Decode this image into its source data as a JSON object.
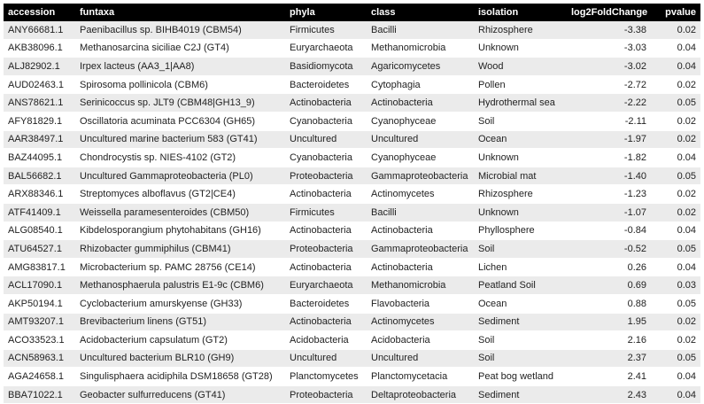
{
  "table": {
    "columns": [
      "accession",
      "funtaxa",
      "phyla",
      "class",
      "isolation",
      "log2FoldChange",
      "pvalue"
    ],
    "rows": [
      [
        "ANY66681.1",
        "Paenibacillus sp. BIHB4019 (CBM54)",
        "Firmicutes",
        "Bacilli",
        "Rhizosphere",
        "-3.38",
        "0.02"
      ],
      [
        "AKB38096.1",
        "Methanosarcina siciliae C2J (GT4)",
        "Euryarchaeota",
        "Methanomicrobia",
        "Unknown",
        "-3.03",
        "0.04"
      ],
      [
        "ALJ82902.1",
        "Irpex lacteus (AA3_1|AA8)",
        "Basidiomycota",
        "Agaricomycetes",
        "Wood",
        "-3.02",
        "0.04"
      ],
      [
        "AUD02463.1",
        "Spirosoma pollinicola (CBM6)",
        "Bacteroidetes",
        "Cytophagia",
        "Pollen",
        "-2.72",
        "0.02"
      ],
      [
        "ANS78621.1",
        "Serinicoccus sp. JLT9 (CBM48|GH13_9)",
        "Actinobacteria",
        "Actinobacteria",
        "Hydrothermal sea",
        "-2.22",
        "0.05"
      ],
      [
        "AFY81829.1",
        "Oscillatoria acuminata PCC6304 (GH65)",
        "Cyanobacteria",
        "Cyanophyceae",
        "Soil",
        "-2.11",
        "0.02"
      ],
      [
        "AAR38497.1",
        "Uncultured marine bacterium 583 (GT41)",
        "Uncultured",
        "Uncultured",
        "Ocean",
        "-1.97",
        "0.02"
      ],
      [
        "BAZ44095.1",
        "Chondrocystis sp. NIES-4102 (GT2)",
        "Cyanobacteria",
        "Cyanophyceae",
        "Unknown",
        "-1.82",
        "0.04"
      ],
      [
        "BAL56682.1",
        "Uncultured Gammaproteobacteria (PL0)",
        "Proteobacteria",
        "Gammaproteobacteria",
        "Microbial mat",
        "-1.40",
        "0.05"
      ],
      [
        "ARX88346.1",
        "Streptomyces alboflavus (GT2|CE4)",
        "Actinobacteria",
        "Actinomycetes",
        "Rhizosphere",
        "-1.23",
        "0.02"
      ],
      [
        "ATF41409.1",
        "Weissella paramesenteroides (CBM50)",
        "Firmicutes",
        "Bacilli",
        "Unknown",
        "-1.07",
        "0.02"
      ],
      [
        "ALG08540.1",
        "Kibdelosporangium phytohabitans (GH16)",
        "Actinobacteria",
        "Actinobacteria",
        "Phyllosphere",
        "-0.84",
        "0.04"
      ],
      [
        "ATU64527.1",
        "Rhizobacter gummiphilus (CBM41)",
        "Proteobacteria",
        "Gammaproteobacteria",
        "Soil",
        "-0.52",
        "0.05"
      ],
      [
        "AMG83817.1",
        "Microbacterium sp. PAMC 28756 (CE14)",
        "Actinobacteria",
        "Actinobacteria",
        "Lichen",
        "0.26",
        "0.04"
      ],
      [
        "ACL17090.1",
        "Methanosphaerula palustris E1-9c (CBM6)",
        "Euryarchaeota",
        "Methanomicrobia",
        "Peatland Soil",
        "0.69",
        "0.03"
      ],
      [
        "AKP50194.1",
        "Cyclobacterium amurskyense (GH33)",
        "Bacteroidetes",
        "Flavobacteria",
        "Ocean",
        "0.88",
        "0.05"
      ],
      [
        "AMT93207.1",
        "Brevibacterium linens (GT51)",
        "Actinobacteria",
        "Actinomycetes",
        "Sediment",
        "1.95",
        "0.02"
      ],
      [
        "ACO33523.1",
        "Acidobacterium capsulatum (GT2)",
        "Acidobacteria",
        "Acidobacteria",
        "Soil",
        "2.16",
        "0.02"
      ],
      [
        "ACN58963.1",
        "Uncultured bacterium BLR10 (GH9)",
        "Uncultured",
        "Uncultured",
        "Soil",
        "2.37",
        "0.05"
      ],
      [
        "AGA24658.1",
        "Singulisphaera acidiphila DSM18658 (GT28)",
        "Planctomycetes",
        "Planctomycetacia",
        "Peat bog wetland",
        "2.41",
        "0.04"
      ],
      [
        "BBA71022.1",
        "Geobacter sulfurreducens (GT41)",
        "Proteobacteria",
        "Deltaproteobacteria",
        "Sediment",
        "2.43",
        "0.04"
      ]
    ]
  }
}
